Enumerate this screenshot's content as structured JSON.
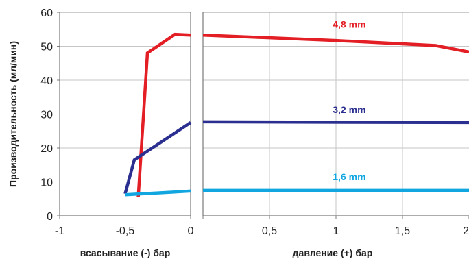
{
  "chart_data": {
    "type": "line",
    "ylabel": "Производительность (мл/мин)",
    "y_ticks": [
      "0",
      "10",
      "20",
      "30",
      "40",
      "50",
      "60"
    ],
    "ylim": [
      0,
      60
    ],
    "grid": true,
    "panels": [
      {
        "id": "suction",
        "xlabel": "всасывание (-) бар",
        "xlim": [
          -1,
          0
        ],
        "x_ticks": [
          "-1",
          "-0,5",
          "0"
        ],
        "series": [
          {
            "label": "4,8 mm",
            "color": "#e31e24",
            "points": [
              [
                -0.4,
                5.5
              ],
              [
                -0.33,
                48
              ],
              [
                -0.12,
                53.5
              ],
              [
                0,
                53.3
              ]
            ]
          },
          {
            "label": "3,2 mm",
            "color": "#2b2f8f",
            "points": [
              [
                -0.5,
                6.5
              ],
              [
                -0.43,
                16.5
              ],
              [
                0,
                27.5
              ]
            ]
          },
          {
            "label": "1,6 mm",
            "color": "#12a6e0",
            "points": [
              [
                -0.5,
                6.2
              ],
              [
                0,
                7.3
              ]
            ]
          }
        ]
      },
      {
        "id": "pressure",
        "xlabel": "давление (+) бар",
        "xlim": [
          0,
          2
        ],
        "x_ticks": [
          "0",
          "0,5",
          "1",
          "1,5",
          "2"
        ],
        "series": [
          {
            "label": "4,8 mm",
            "color": "#e31e24",
            "points": [
              [
                0,
                53.3
              ],
              [
                1.0,
                51.7
              ],
              [
                1.75,
                50.2
              ],
              [
                2.0,
                48.3
              ]
            ]
          },
          {
            "label": "3,2 mm",
            "color": "#2b2f8f",
            "points": [
              [
                0,
                27.7
              ],
              [
                2.0,
                27.5
              ]
            ]
          },
          {
            "label": "1,6 mm",
            "color": "#12a6e0",
            "points": [
              [
                0,
                7.5
              ],
              [
                2.0,
                7.5
              ]
            ]
          }
        ]
      }
    ],
    "annotations": [
      {
        "text": "4,8 mm",
        "color": "#e31e24",
        "x": 1.1,
        "y": 55.5
      },
      {
        "text": "3,2 mm",
        "color": "#2b2f8f",
        "x": 1.1,
        "y": 30.3
      },
      {
        "text": "1,6 mm",
        "color": "#12a6e0",
        "x": 1.1,
        "y": 10.5
      }
    ]
  }
}
